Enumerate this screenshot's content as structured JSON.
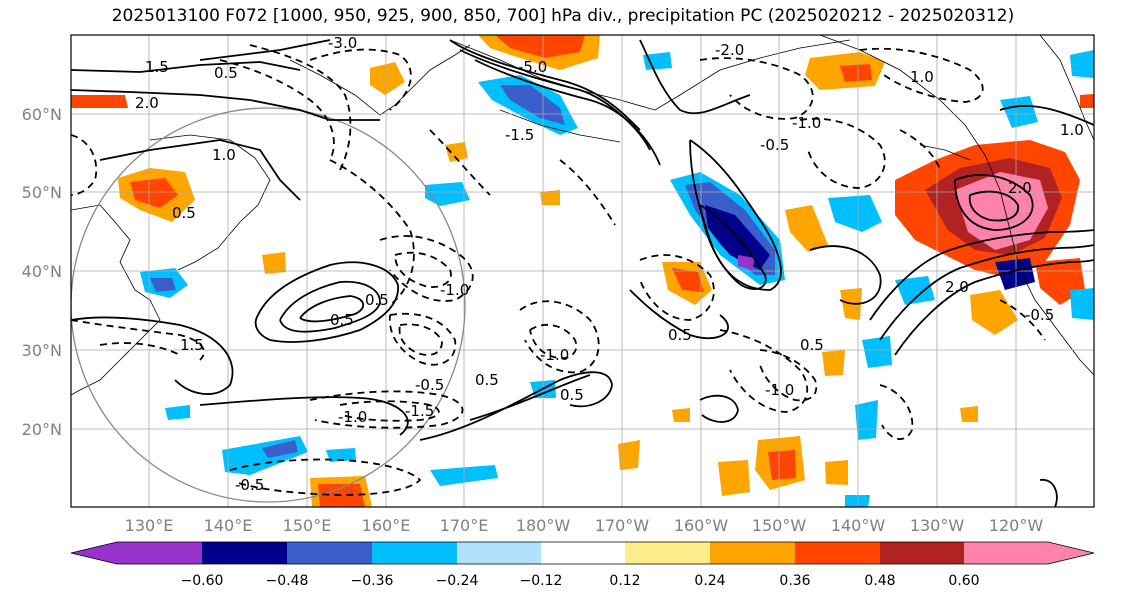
{
  "title": "2025013100 F072 [1000, 950, 925, 900, 850, 700] hPa div., precipitation PC (2025020212 - 2025020312)",
  "lat_labels": [
    "60°N",
    "50°N",
    "40°N",
    "30°N",
    "20°N"
  ],
  "lon_labels": [
    "130°E",
    "140°E",
    "150°E",
    "160°E",
    "170°E",
    "180°W",
    "170°W",
    "160°W",
    "150°W",
    "140°W",
    "130°W",
    "120°W"
  ],
  "contour_labels": [
    "-3.0",
    "0.5",
    "1.5",
    "2.0",
    "-5.0",
    "-2.0",
    "-1.0",
    "1.0",
    "-0.5",
    "-1.5",
    "0.5",
    "1.0",
    "1.5",
    "2.0",
    "0.5",
    "-1.0",
    "0.5",
    "-0.5",
    "-1.0",
    "-1.5",
    "0.5",
    "-1.0",
    "-0.5",
    "0.5",
    "-1.0",
    "0.5",
    "0.5",
    "2.0",
    "1.0",
    "-0.5"
  ],
  "colorbar": {
    "ticks": [
      "−0.60",
      "−0.48",
      "−0.36",
      "−0.24",
      "−0.12",
      "0.12",
      "0.24",
      "0.36",
      "0.48",
      "0.60"
    ],
    "colors": [
      "#9932CC",
      "#00008B",
      "#3A5FCD",
      "#00BFFF",
      "#B0E2FF",
      "#FFFFFF",
      "#FFEC8B",
      "#FFA500",
      "#FF4500",
      "#B22222",
      "#FF82AB"
    ]
  }
}
